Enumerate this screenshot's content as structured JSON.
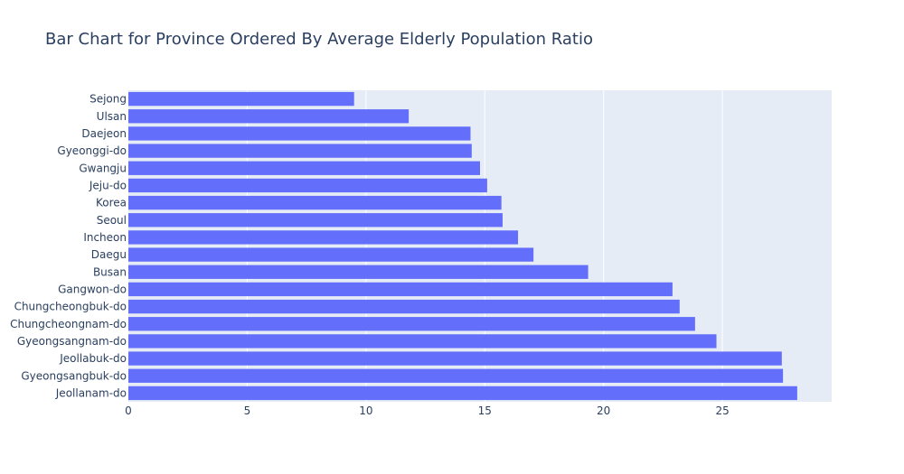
{
  "chart_data": {
    "type": "bar",
    "orientation": "horizontal",
    "title": "Bar Chart for Province Ordered By Average Elderly Population Ratio",
    "xlabel": "",
    "ylabel": "",
    "xlim": [
      0,
      29.6
    ],
    "x_ticks": [
      0,
      5,
      10,
      15,
      20,
      25
    ],
    "grid": true,
    "bar_color": "#636efa",
    "plot_bg": "#e5ecf6",
    "categories": [
      "Sejong",
      "Ulsan",
      "Daejeon",
      "Gyeonggi-do",
      "Gwangju",
      "Jeju-do",
      "Korea",
      "Seoul",
      "Incheon",
      "Daegu",
      "Busan",
      "Gangwon-do",
      "Chungcheongbuk-do",
      "Chungcheongnam-do",
      "Gyeongsangnam-do",
      "Jeollabuk-do",
      "Gyeongsangbuk-do",
      "Jeollanam-do"
    ],
    "values": [
      9.5,
      11.8,
      14.4,
      14.45,
      14.8,
      15.1,
      15.7,
      15.75,
      16.4,
      17.05,
      19.35,
      22.9,
      23.2,
      23.85,
      24.75,
      27.5,
      27.55,
      28.15
    ]
  }
}
